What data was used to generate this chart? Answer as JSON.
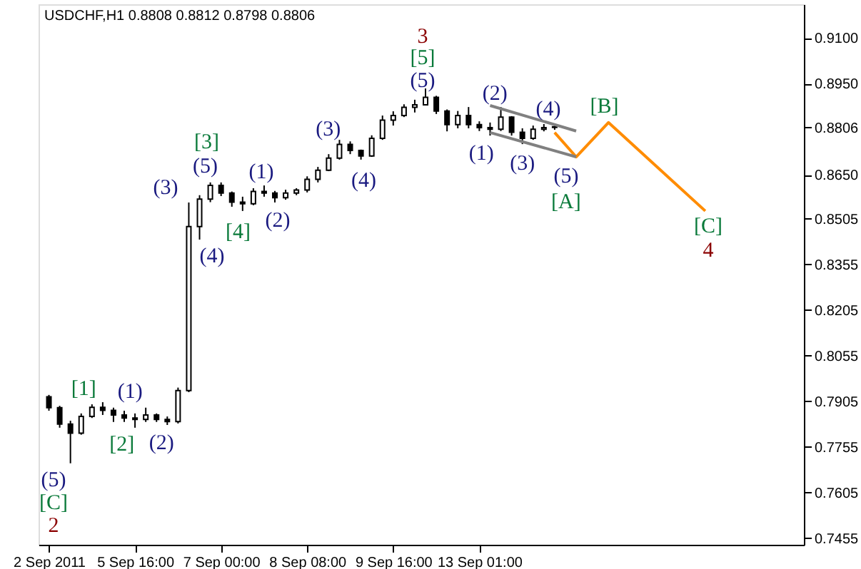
{
  "chart_data": {
    "type": "candlestick",
    "title": "USDCHF,H1  0.8808 0.8812 0.8798 0.8806",
    "categories": [
      "2 Sep 2011",
      null,
      null,
      null,
      null,
      null,
      null,
      null,
      "5 Sep 16:00",
      null,
      null,
      null,
      null,
      null,
      null,
      null,
      "7 Sep 00:00",
      null,
      null,
      null,
      null,
      null,
      null,
      null,
      "8 Sep 08:00",
      null,
      null,
      null,
      null,
      null,
      null,
      null,
      "9 Sep 16:00",
      null,
      null,
      null,
      null,
      null,
      null,
      null,
      "13 Sep 01:00",
      null,
      null,
      null,
      null,
      null,
      null,
      null,
      null,
      null,
      null,
      null,
      null,
      null,
      null,
      null,
      null,
      null,
      null,
      null,
      null,
      null,
      null,
      null,
      null,
      null,
      null,
      null,
      null,
      null
    ],
    "ohlc": [
      [
        0.792,
        0.7926,
        0.7874,
        0.7884
      ],
      [
        0.7884,
        0.789,
        0.7818,
        0.783
      ],
      [
        0.783,
        0.7841,
        0.7701,
        0.78
      ],
      [
        0.78,
        0.7865,
        0.7795,
        0.7855
      ],
      [
        0.7855,
        0.7895,
        0.785,
        0.7885
      ],
      [
        0.7885,
        0.7902,
        0.786,
        0.7875
      ],
      [
        0.7875,
        0.7884,
        0.7837,
        0.786
      ],
      [
        0.786,
        0.7874,
        0.7837,
        0.785
      ],
      [
        0.785,
        0.7865,
        0.7818,
        0.7845
      ],
      [
        0.7845,
        0.7884,
        0.7837,
        0.786
      ],
      [
        0.786,
        0.7865,
        0.7837,
        0.7845
      ],
      [
        0.7845,
        0.7855,
        0.7827,
        0.7838
      ],
      [
        0.7838,
        0.795,
        0.7832,
        0.794
      ],
      [
        0.794,
        0.8559,
        0.7935,
        0.848
      ],
      [
        0.848,
        0.8583,
        0.8437,
        0.857
      ],
      [
        0.857,
        0.8625,
        0.856,
        0.8615
      ],
      [
        0.8615,
        0.8625,
        0.858,
        0.859
      ],
      [
        0.859,
        0.8595,
        0.8545,
        0.856
      ],
      [
        0.856,
        0.8578,
        0.8531,
        0.8555
      ],
      [
        0.8555,
        0.8606,
        0.855,
        0.8595
      ],
      [
        0.8595,
        0.8615,
        0.8578,
        0.859
      ],
      [
        0.859,
        0.8597,
        0.8559,
        0.8575
      ],
      [
        0.8575,
        0.8601,
        0.8568,
        0.859
      ],
      [
        0.859,
        0.8606,
        0.8583,
        0.86
      ],
      [
        0.86,
        0.8645,
        0.8592,
        0.8635
      ],
      [
        0.8635,
        0.8676,
        0.8625,
        0.8665
      ],
      [
        0.8665,
        0.8718,
        0.8662,
        0.8705
      ],
      [
        0.8705,
        0.8765,
        0.87,
        0.875
      ],
      [
        0.875,
        0.876,
        0.8718,
        0.873
      ],
      [
        0.873,
        0.8733,
        0.87,
        0.8712
      ],
      [
        0.8712,
        0.878,
        0.8709,
        0.877
      ],
      [
        0.877,
        0.8845,
        0.8765,
        0.883
      ],
      [
        0.883,
        0.8859,
        0.8812,
        0.8845
      ],
      [
        0.8845,
        0.8882,
        0.884,
        0.8872
      ],
      [
        0.8872,
        0.8897,
        0.8855,
        0.888
      ],
      [
        0.888,
        0.8934,
        0.8878,
        0.8905
      ],
      [
        0.8905,
        0.891,
        0.885,
        0.886
      ],
      [
        0.886,
        0.8865,
        0.8793,
        0.8815
      ],
      [
        0.8815,
        0.886,
        0.8803,
        0.8845
      ],
      [
        0.8845,
        0.8873,
        0.8803,
        0.8815
      ],
      [
        0.8815,
        0.8826,
        0.8794,
        0.8805
      ],
      [
        0.8805,
        0.8822,
        0.8779,
        0.88
      ],
      [
        0.88,
        0.8873,
        0.8794,
        0.884
      ],
      [
        0.884,
        0.8843,
        0.8779,
        0.879
      ],
      [
        0.879,
        0.8803,
        0.8751,
        0.877
      ],
      [
        0.877,
        0.8812,
        0.8765,
        0.88
      ],
      [
        0.88,
        0.8817,
        0.8793,
        0.8805
      ],
      [
        0.8808,
        0.8812,
        0.8798,
        0.8806
      ],
      null,
      null,
      null,
      null,
      null,
      null,
      null,
      null,
      null,
      null,
      null,
      null,
      null,
      null,
      null,
      null,
      null,
      null,
      null,
      null,
      null,
      null
    ],
    "color": "#000000",
    "series": [
      {
        "type": "line",
        "color": "#ff8c00",
        "values": [
          null,
          null,
          null,
          null,
          null,
          null,
          null,
          null,
          null,
          null,
          null,
          null,
          null,
          null,
          null,
          null,
          null,
          null,
          null,
          null,
          null,
          null,
          null,
          null,
          null,
          null,
          null,
          null,
          null,
          null,
          null,
          null,
          null,
          null,
          null,
          null,
          null,
          null,
          null,
          null,
          null,
          null,
          null,
          null,
          null,
          null,
          null,
          0.8789,
          null,
          0.8709,
          null,
          null,
          0.8822,
          null,
          null,
          null,
          null,
          null,
          null,
          null,
          null,
          0.8531,
          null,
          null,
          null,
          null,
          null,
          null,
          null,
          null
        ]
      },
      {
        "type": "line",
        "color": "#808080",
        "values": [
          null,
          null,
          null,
          null,
          null,
          null,
          null,
          null,
          null,
          null,
          null,
          null,
          null,
          null,
          null,
          null,
          null,
          null,
          null,
          null,
          null,
          null,
          null,
          null,
          null,
          null,
          null,
          null,
          null,
          null,
          null,
          null,
          null,
          null,
          null,
          null,
          null,
          null,
          null,
          null,
          null,
          0.8878,
          null,
          null,
          null,
          null,
          null,
          null,
          null,
          0.8794,
          null,
          null,
          null,
          null,
          null,
          null,
          null,
          null,
          null,
          null,
          null,
          null,
          null,
          null,
          null,
          null,
          null,
          null,
          null,
          null
        ]
      },
      {
        "type": "line",
        "color": "#808080",
        "values": [
          null,
          null,
          null,
          null,
          null,
          null,
          null,
          null,
          null,
          null,
          null,
          null,
          null,
          null,
          null,
          null,
          null,
          null,
          null,
          null,
          null,
          null,
          null,
          null,
          null,
          null,
          null,
          null,
          null,
          null,
          null,
          null,
          null,
          null,
          null,
          null,
          null,
          null,
          null,
          null,
          null,
          0.8789,
          null,
          null,
          null,
          null,
          null,
          null,
          null,
          0.8709,
          null,
          null,
          null,
          null,
          null,
          null,
          null,
          null,
          null,
          null,
          null,
          null,
          null,
          null,
          null,
          null,
          null,
          null,
          null,
          null
        ]
      }
    ],
    "ylim": [
      0.7433,
      0.9211
    ],
    "yticks": [
      0.7455,
      0.7605,
      0.7755,
      0.7905,
      0.8055,
      0.8205,
      0.8355,
      0.8505,
      {
        "value": 0.865,
        "label": "0.8650"
      },
      0.8806,
      {
        "value": 0.895,
        "label": "0.8950"
      },
      {
        "value": 0.91,
        "label": "0.9100"
      }
    ],
    "grid": false,
    "annotations": [
      "(5)",
      "[C]",
      "2",
      "[1]",
      "(1)",
      "[2]",
      "(2)",
      "(3)",
      "(4)",
      "(5)",
      "[3]",
      "[4]",
      "(1)",
      "(2)",
      "(3)",
      "(4)",
      "3",
      "[5]",
      "(5)",
      "(2)",
      "(1)",
      "(3)",
      "(4)",
      "(5)",
      "[A]",
      "[B]",
      "[C]",
      "4"
    ]
  }
}
